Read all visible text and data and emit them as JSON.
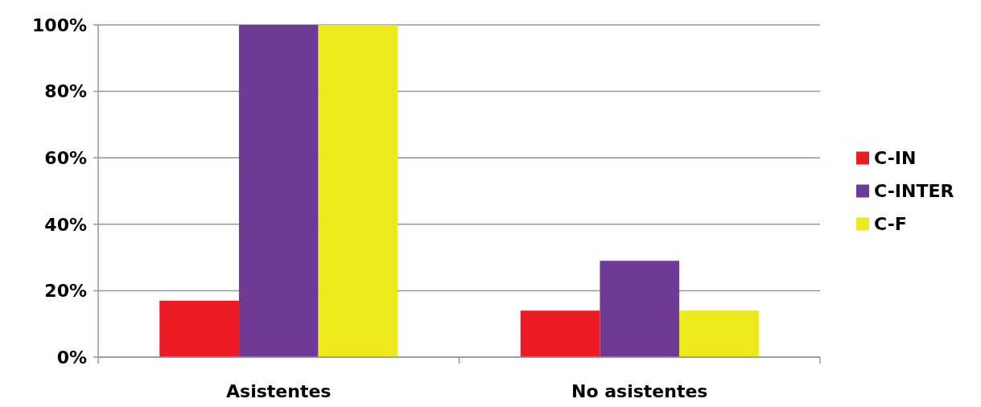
{
  "chart_data": {
    "type": "bar",
    "categories": [
      "Asistentes",
      "No asistentes"
    ],
    "series": [
      {
        "name": "C-IN",
        "color": "#ed1c24",
        "values": [
          17,
          14
        ]
      },
      {
        "name": "C-INTER",
        "color": "#6e3a96",
        "values": [
          100,
          29
        ]
      },
      {
        "name": "C-F",
        "color": "#ede91a",
        "values": [
          100,
          14
        ]
      }
    ],
    "ylim": [
      0,
      100
    ],
    "yticks": [
      {
        "value": 0,
        "label": "0%"
      },
      {
        "value": 20,
        "label": "20%"
      },
      {
        "value": 40,
        "label": "40%"
      },
      {
        "value": 60,
        "label": "60%"
      },
      {
        "value": 80,
        "label": "80%"
      },
      {
        "value": 100,
        "label": "100%"
      }
    ],
    "grid": "y",
    "legend": "right"
  }
}
